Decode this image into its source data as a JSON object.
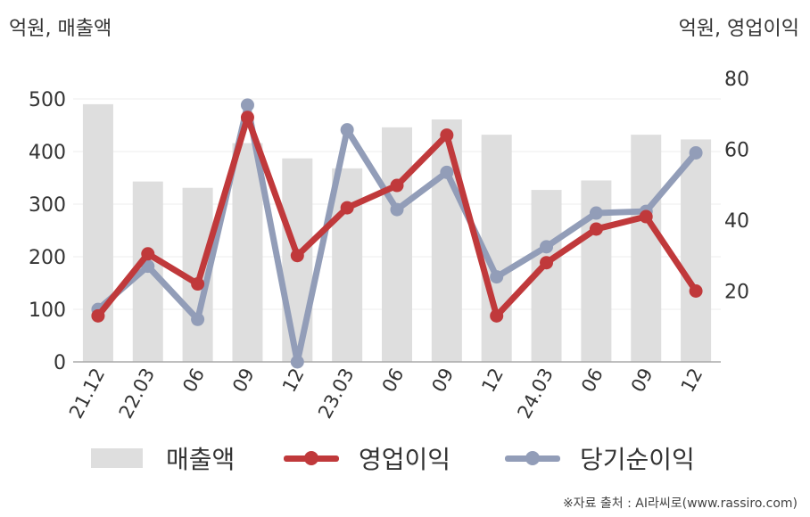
{
  "chart_data": {
    "type": "bar+line",
    "left_axis_unit": "억원, 매출액",
    "right_axis_unit": "억원, 영업이익",
    "categories": [
      "21.12",
      "22.03",
      "06",
      "09",
      "12",
      "23.03",
      "06",
      "09",
      "12",
      "24.03",
      "06",
      "09",
      "12"
    ],
    "left_axis": {
      "ylim": [
        0,
        500
      ],
      "ticks": [
        "0",
        "100",
        "200",
        "300",
        "400",
        "500"
      ]
    },
    "right_axis": {
      "ylim": [
        0,
        80
      ],
      "ticks": [
        "20",
        "40",
        "60",
        "80"
      ]
    },
    "series": [
      {
        "name": "매출액",
        "kind": "bar",
        "axis": "left",
        "color": "#dedede",
        "values": [
          490,
          343,
          331,
          416,
          387,
          368,
          446,
          461,
          432,
          327,
          345,
          432,
          423
        ]
      },
      {
        "name": "영업이익",
        "kind": "line",
        "axis": "right",
        "color": "#c0393b",
        "values": [
          13,
          30.5,
          22,
          69,
          30,
          43.5,
          49.8,
          64,
          13,
          28,
          37.5,
          41,
          20
        ]
      },
      {
        "name": "당기순이익",
        "kind": "line",
        "axis": "right",
        "color": "#929db8",
        "values": [
          14.8,
          27,
          12,
          72.5,
          0,
          65.5,
          43,
          53.5,
          24,
          32.5,
          42,
          42.5,
          59
        ]
      }
    ],
    "grid": true,
    "legend_position": "bottom"
  },
  "source": "※자료 출처 : AI라씨로(www.rassiro.com)"
}
